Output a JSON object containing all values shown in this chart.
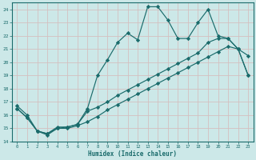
{
  "xlabel": "Humidex (Indice chaleur)",
  "xlim": [
    -0.5,
    23.5
  ],
  "ylim": [
    14,
    24.5
  ],
  "xticks": [
    0,
    1,
    2,
    3,
    4,
    5,
    6,
    7,
    8,
    9,
    10,
    11,
    12,
    13,
    14,
    15,
    16,
    17,
    18,
    19,
    20,
    21,
    22,
    23
  ],
  "yticks": [
    14,
    15,
    16,
    17,
    18,
    19,
    20,
    21,
    22,
    23,
    24
  ],
  "bg_color": "#cce8e8",
  "line_color": "#1a6b6b",
  "grid_color": "#b8d8d8",
  "line1_x": [
    0,
    1,
    2,
    3,
    4,
    5,
    6,
    7,
    8,
    9,
    10,
    11,
    12,
    13,
    14,
    15,
    16,
    17,
    18,
    19,
    20,
    21,
    22,
    23
  ],
  "line1_y": [
    16.7,
    16.0,
    14.8,
    14.6,
    15.1,
    15.1,
    15.3,
    16.5,
    19.0,
    20.2,
    21.5,
    22.2,
    21.7,
    24.2,
    24.2,
    23.2,
    21.8,
    21.8,
    23.0,
    24.0,
    22.0,
    21.8,
    21.0,
    20.5
  ],
  "line2_x": [
    0,
    1,
    2,
    3,
    4,
    5,
    6,
    7,
    8,
    9,
    10,
    11,
    12,
    13,
    14,
    15,
    16,
    17,
    18,
    19,
    20,
    21,
    22,
    23
  ],
  "line2_y": [
    16.5,
    15.8,
    14.8,
    14.6,
    15.0,
    15.1,
    15.3,
    16.3,
    16.6,
    17.0,
    17.5,
    17.9,
    18.3,
    18.7,
    19.1,
    19.5,
    19.9,
    20.3,
    20.7,
    21.5,
    21.8,
    21.8,
    21.0,
    19.0
  ],
  "line3_x": [
    0,
    1,
    2,
    3,
    4,
    5,
    6,
    7,
    8,
    9,
    10,
    11,
    12,
    13,
    14,
    15,
    16,
    17,
    18,
    19,
    20,
    21,
    22,
    23
  ],
  "line3_y": [
    16.5,
    15.8,
    14.8,
    14.5,
    15.0,
    15.0,
    15.2,
    15.5,
    15.9,
    16.4,
    16.8,
    17.2,
    17.6,
    18.0,
    18.4,
    18.8,
    19.2,
    19.6,
    20.0,
    20.4,
    20.8,
    21.2,
    21.0,
    19.0
  ]
}
